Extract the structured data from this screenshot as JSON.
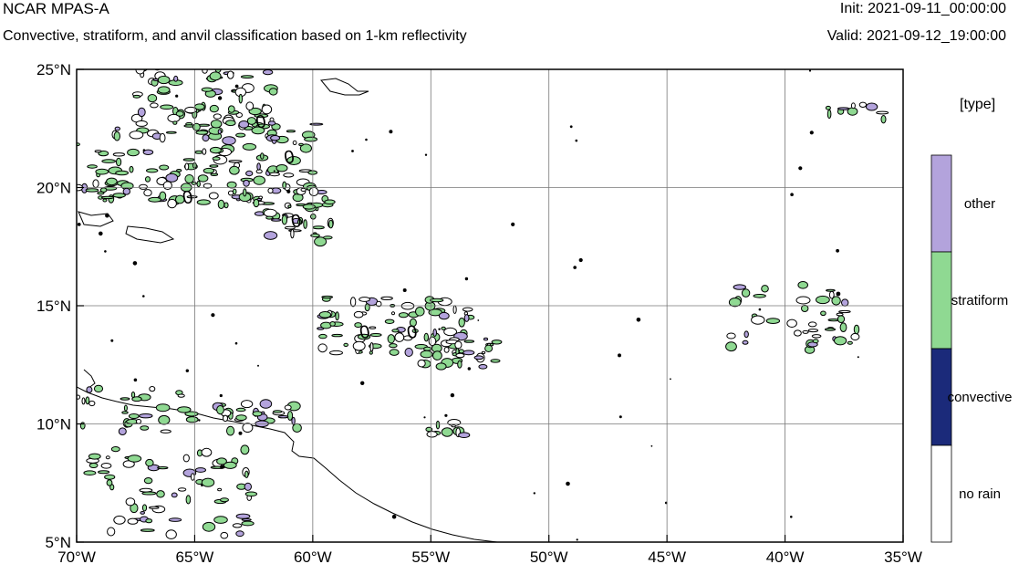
{
  "header": {
    "title": "NCAR MPAS-A",
    "subtitle": "Convective, stratiform, and anvil classification based on 1-km reflectivity",
    "init": "Init: 2021-09-11_00:00:00",
    "valid": "Valid: 2021-09-12_19:00:00"
  },
  "map": {
    "lon_ticks": [
      "70°W",
      "65°W",
      "60°W",
      "55°W",
      "50°W",
      "45°W",
      "40°W",
      "35°W"
    ],
    "lat_ticks": [
      "25°N",
      "20°N",
      "15°N",
      "10°N",
      "5°N"
    ],
    "lon_range": [
      -70,
      -35
    ],
    "lat_range": [
      5,
      25
    ],
    "contour_labels": [
      "0",
      "0",
      "0",
      "0",
      "0",
      "0"
    ]
  },
  "legend": {
    "title": "[type]",
    "items": [
      {
        "label": "other",
        "color": "#b3a3dc"
      },
      {
        "label": "stratiform",
        "color": "#8fd992"
      },
      {
        "label": "convective",
        "color": "#1b2a7a"
      },
      {
        "label": "no rain",
        "color": "#ffffff"
      }
    ]
  }
}
